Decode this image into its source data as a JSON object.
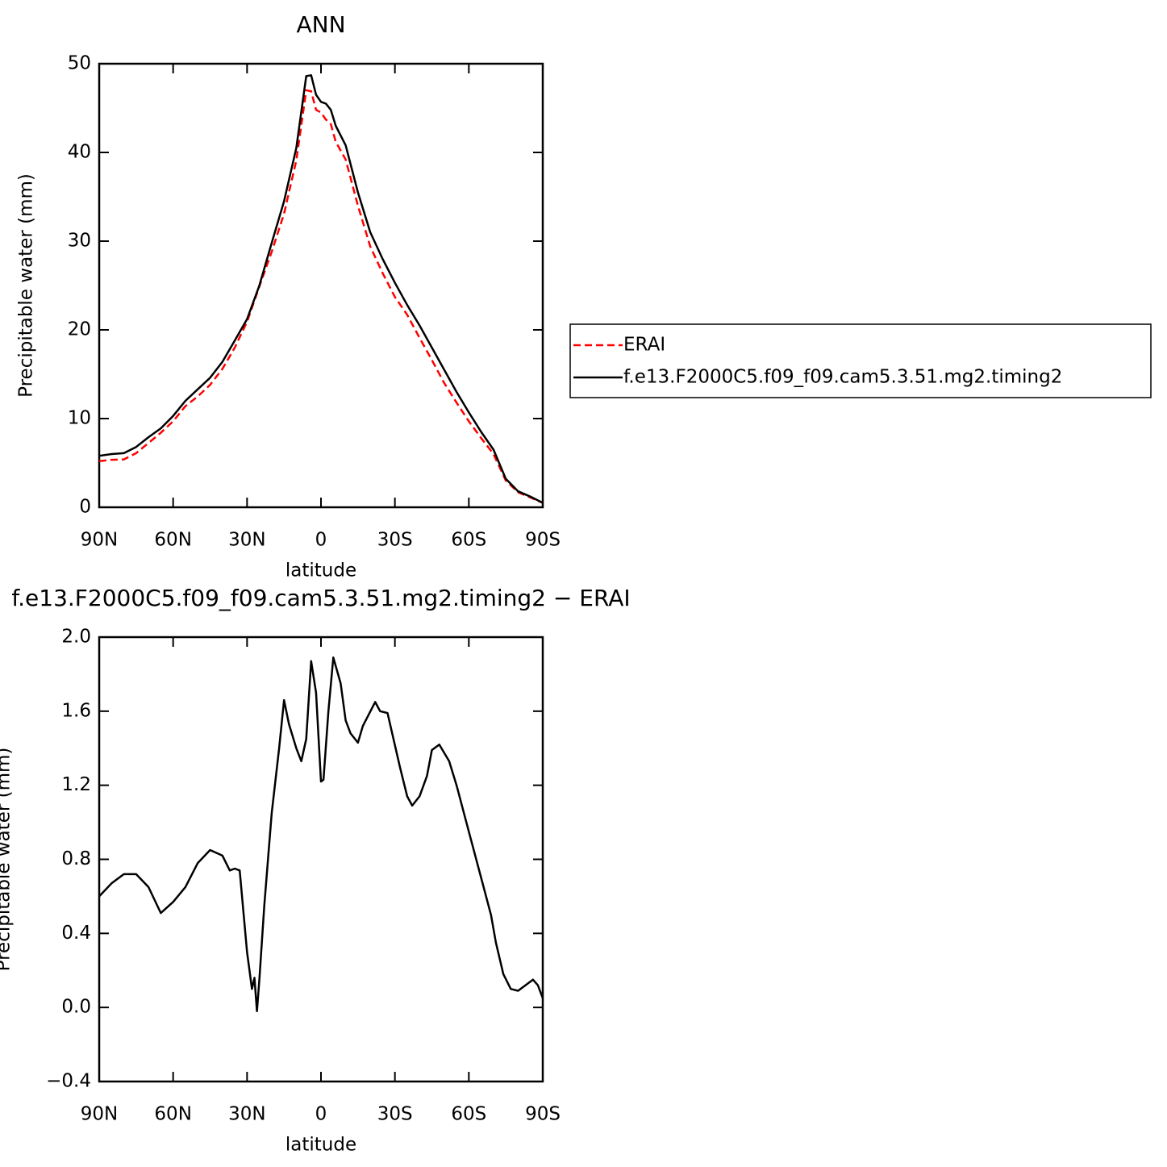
{
  "chart_data": [
    {
      "type": "line",
      "title": "ANN",
      "xlabel": "latitude",
      "ylabel": "Precipitable water (mm)",
      "x": [
        90,
        85,
        80,
        75,
        70,
        65,
        60,
        55,
        50,
        45,
        40,
        35,
        30,
        25,
        20,
        15,
        10,
        6,
        4,
        2,
        0,
        -2,
        -4,
        -6,
        -10,
        -15,
        -20,
        -25,
        -30,
        -35,
        -40,
        -45,
        -50,
        -55,
        -60,
        -65,
        -70,
        -75,
        -80,
        -85,
        -90
      ],
      "series": [
        {
          "name": "ERAI",
          "color": "#ff0000",
          "linestyle": "dashed",
          "values": [
            5.2,
            5.35,
            5.4,
            6.1,
            7.25,
            8.4,
            9.7,
            11.4,
            12.5,
            13.8,
            15.6,
            18.0,
            20.9,
            24.9,
            28.8,
            33.1,
            39.1,
            47.0,
            46.9,
            44.8,
            44.5,
            43.7,
            43.2,
            41.2,
            39.2,
            34.0,
            29.4,
            26.4,
            23.7,
            21.7,
            19.1,
            16.6,
            14.0,
            11.8,
            9.7,
            7.8,
            6.0,
            3.0,
            1.7,
            1.1,
            0.5
          ]
        },
        {
          "name": "f.e13.F2000C5.f09_f09.cam5.3.51.mg2.timing2",
          "color": "#000000",
          "linestyle": "solid",
          "values": [
            5.8,
            6.0,
            6.1,
            6.8,
            7.9,
            8.9,
            10.3,
            12.0,
            13.3,
            14.6,
            16.4,
            18.8,
            21.2,
            25.0,
            29.8,
            34.5,
            40.5,
            48.6,
            48.7,
            46.5,
            45.7,
            45.5,
            44.8,
            43.0,
            40.8,
            35.5,
            31.0,
            28.0,
            25.3,
            22.8,
            20.5,
            18.0,
            15.5,
            13.0,
            10.7,
            8.5,
            6.5,
            3.2,
            1.8,
            1.2,
            0.5
          ]
        }
      ],
      "xlim": [
        90,
        -90
      ],
      "xticks": [
        {
          "value": 90,
          "label": "90N"
        },
        {
          "value": 60,
          "label": "60N"
        },
        {
          "value": 30,
          "label": "30N"
        },
        0,
        {
          "value": -30,
          "label": "30S"
        },
        {
          "value": -60,
          "label": "60S"
        },
        {
          "value": -90,
          "label": "90S"
        }
      ],
      "ylim": [
        0,
        50
      ],
      "yticks": [
        0,
        10,
        20,
        30,
        40,
        50
      ],
      "legend": "right"
    },
    {
      "type": "line",
      "title": "f.e13.F2000C5.f09_f09.cam5.3.51.mg2.timing2 − ERAI",
      "xlabel": "latitude",
      "ylabel": "Precipitable water (mm)",
      "x": [
        90,
        85,
        80,
        75,
        70,
        65,
        60,
        55,
        50,
        45,
        40,
        37,
        35,
        33,
        30,
        28,
        27,
        26,
        25,
        23,
        20,
        17,
        15,
        13,
        10,
        8,
        6,
        4,
        2,
        0,
        -1,
        -3,
        -5,
        -8,
        -10,
        -12,
        -15,
        -17,
        -22,
        -24,
        -27,
        -32,
        -35,
        -37,
        -40,
        -43,
        -45,
        -48,
        -52,
        -55,
        -60,
        -65,
        -69,
        -71,
        -74,
        -77,
        -80,
        -83,
        -86,
        -88,
        -90
      ],
      "values": [
        0.6,
        0.67,
        0.72,
        0.72,
        0.65,
        0.51,
        0.57,
        0.65,
        0.78,
        0.85,
        0.82,
        0.74,
        0.75,
        0.74,
        0.3,
        0.1,
        0.16,
        -0.02,
        0.15,
        0.55,
        1.05,
        1.4,
        1.66,
        1.53,
        1.4,
        1.33,
        1.45,
        1.87,
        1.7,
        1.22,
        1.23,
        1.6,
        1.89,
        1.75,
        1.55,
        1.48,
        1.43,
        1.52,
        1.65,
        1.6,
        1.59,
        1.3,
        1.14,
        1.09,
        1.14,
        1.25,
        1.39,
        1.42,
        1.33,
        1.2,
        0.95,
        0.7,
        0.5,
        0.35,
        0.18,
        0.1,
        0.09,
        0.12,
        0.15,
        0.12,
        0.05
      ],
      "color": "#000000",
      "xlim": [
        90,
        -90
      ],
      "xticks": [
        {
          "value": 90,
          "label": "90N"
        },
        {
          "value": 60,
          "label": "60N"
        },
        {
          "value": 30,
          "label": "30N"
        },
        0,
        {
          "value": -30,
          "label": "30S"
        },
        {
          "value": -60,
          "label": "60S"
        },
        {
          "value": -90,
          "label": "90S"
        }
      ],
      "ylim": [
        -0.4,
        2.0
      ],
      "yticks": [
        {
          "value": -0.4,
          "label": "−0.4"
        },
        {
          "value": 0,
          "label": "0.0"
        },
        0.4,
        0.8,
        1.2,
        1.6,
        {
          "value": 2,
          "label": "2.0"
        }
      ]
    }
  ]
}
